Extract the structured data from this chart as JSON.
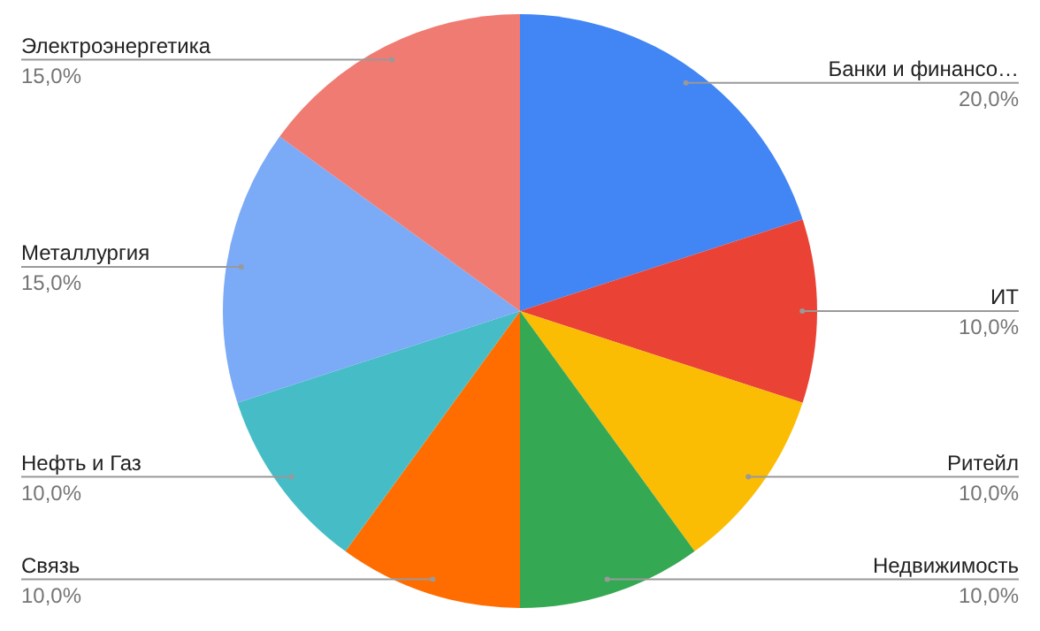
{
  "chart_data": {
    "type": "pie",
    "categories": [
      "Банки и финансо…",
      "ИТ",
      "Ритейл",
      "Недвижимость",
      "Связь",
      "Нефть и Газ",
      "Металлургия",
      "Электроэнергетика"
    ],
    "values": [
      20,
      10,
      10,
      10,
      10,
      10,
      15,
      15
    ],
    "colors": [
      "#4285f4",
      "#ea4335",
      "#fbbc04",
      "#34a853",
      "#ff6d01",
      "#46bdc6",
      "#7baaf7",
      "#f07b72"
    ],
    "value_labels": [
      "20,0%",
      "10,0%",
      "10,0%",
      "10,0%",
      "10,0%",
      "10,0%",
      "15,0%",
      "15,0%"
    ],
    "legend": false
  }
}
